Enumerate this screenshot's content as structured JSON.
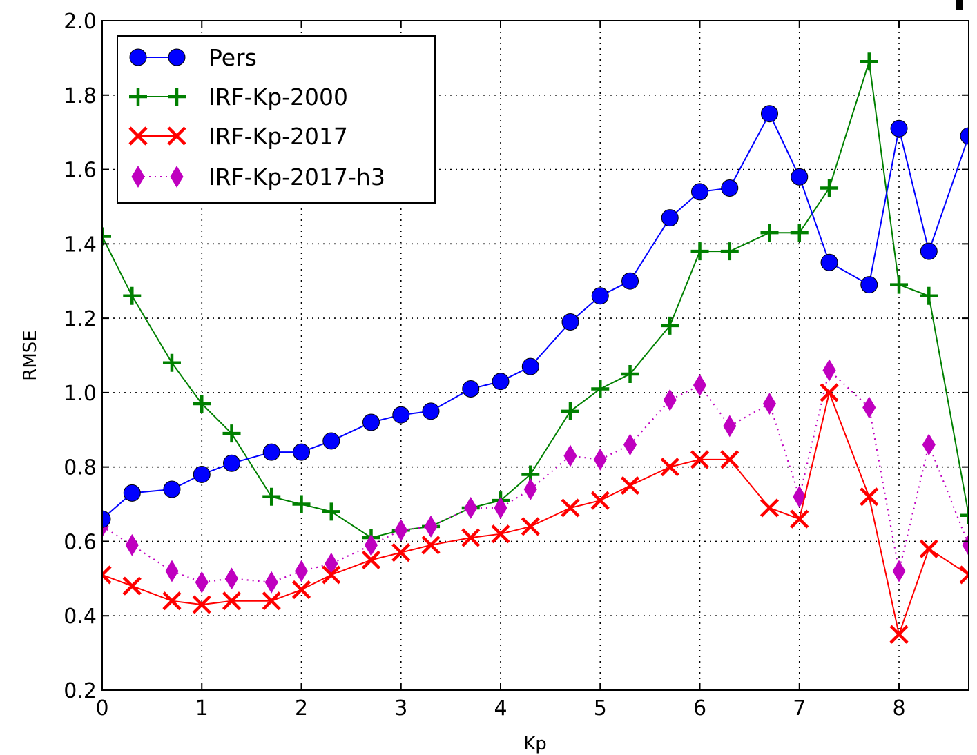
{
  "chart_data": {
    "type": "line",
    "title": "",
    "xlabel": "Kp",
    "ylabel": "RMSE",
    "xlim": [
      0,
      8.7
    ],
    "ylim": [
      0.2,
      2.0
    ],
    "xticks": [
      "0",
      "1",
      "2",
      "3",
      "4",
      "5",
      "6",
      "7",
      "8"
    ],
    "yticks": [
      "0.2",
      "0.4",
      "0.6",
      "0.8",
      "1.0",
      "1.2",
      "1.4",
      "1.6",
      "1.8",
      "2.0"
    ],
    "grid": true,
    "legend_position": "top-left",
    "x": [
      0,
      0.3,
      0.7,
      1,
      1.3,
      1.7,
      2,
      2.3,
      2.7,
      3,
      3.3,
      3.7,
      4,
      4.3,
      4.7,
      5,
      5.3,
      5.7,
      6,
      6.3,
      6.7,
      7,
      7.3,
      7.7,
      8,
      8.3,
      8.7
    ],
    "series": [
      {
        "name": "Pers",
        "color": "#0000ff",
        "marker": "circle",
        "line_style": "solid",
        "values": [
          0.66,
          0.73,
          0.74,
          0.78,
          0.81,
          0.84,
          0.84,
          0.87,
          0.92,
          0.94,
          0.95,
          1.01,
          1.03,
          1.07,
          1.19,
          1.26,
          1.3,
          1.47,
          1.54,
          1.55,
          1.75,
          1.58,
          1.35,
          1.29,
          1.71,
          1.38,
          1.69
        ]
      },
      {
        "name": "IRF-Kp-2000",
        "color": "#008000",
        "marker": "plus",
        "line_style": "solid",
        "values": [
          1.42,
          1.26,
          1.08,
          0.97,
          0.89,
          0.72,
          0.7,
          0.68,
          0.61,
          0.63,
          0.64,
          0.69,
          0.71,
          0.78,
          0.95,
          1.01,
          1.05,
          1.18,
          1.38,
          1.38,
          1.43,
          1.43,
          1.55,
          1.89,
          1.29,
          1.26,
          0.67
        ]
      },
      {
        "name": "IRF-Kp-2017",
        "color": "#ff0000",
        "marker": "x",
        "line_style": "solid",
        "values": [
          0.51,
          0.48,
          0.44,
          0.43,
          0.44,
          0.44,
          0.47,
          0.51,
          0.55,
          0.57,
          0.59,
          0.61,
          0.62,
          0.64,
          0.69,
          0.71,
          0.75,
          0.8,
          0.82,
          0.82,
          0.69,
          0.66,
          1.0,
          0.72,
          0.35,
          0.58,
          0.51
        ]
      },
      {
        "name": "IRF-Kp-2017-h3",
        "color": "#bf00bf",
        "marker": "diamond",
        "line_style": "dotted",
        "values": [
          0.64,
          0.59,
          0.52,
          0.49,
          0.5,
          0.49,
          0.52,
          0.54,
          0.59,
          0.63,
          0.64,
          0.69,
          0.69,
          0.74,
          0.83,
          0.82,
          0.86,
          0.98,
          1.02,
          0.91,
          0.97,
          0.72,
          1.06,
          0.96,
          0.52,
          0.86,
          0.59
        ]
      }
    ]
  }
}
